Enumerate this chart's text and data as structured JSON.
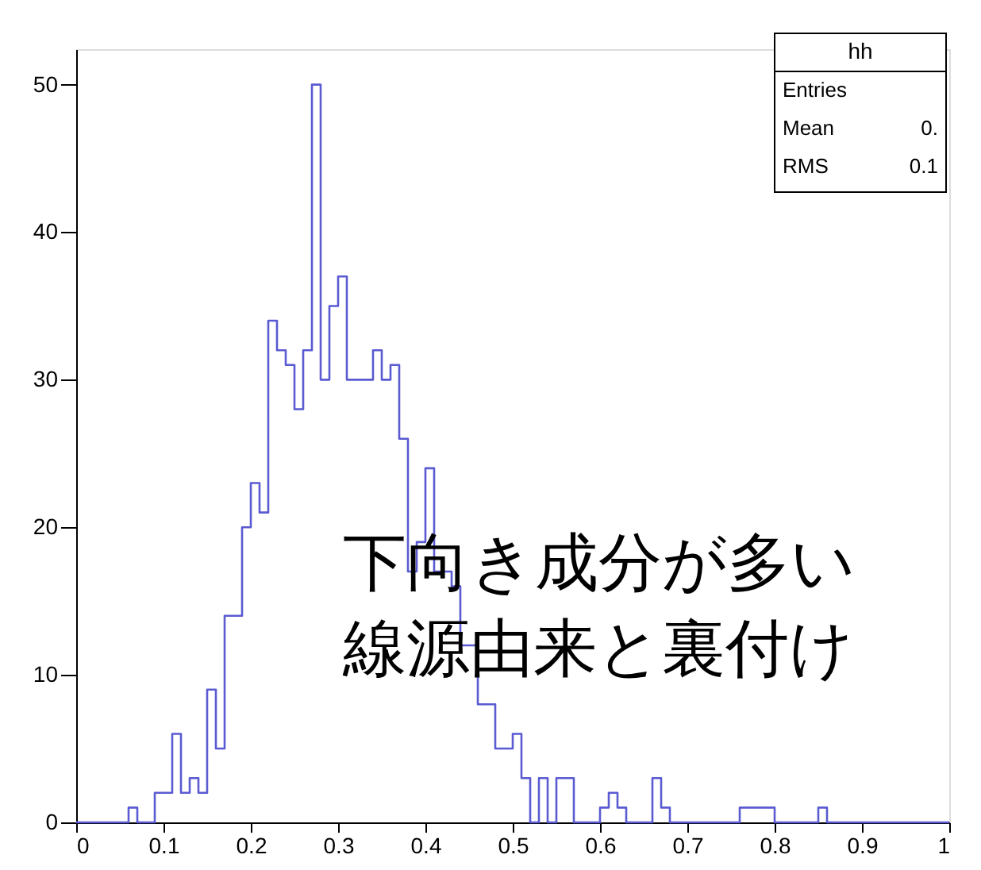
{
  "chart_data": {
    "type": "histogram",
    "bins": [
      0,
      0.01,
      0.02,
      0.03,
      0.04,
      0.05,
      0.06,
      0.07,
      0.08,
      0.09,
      0.1,
      0.11,
      0.12,
      0.13,
      0.14,
      0.15,
      0.16,
      0.17,
      0.18,
      0.19,
      0.2,
      0.21,
      0.22,
      0.23,
      0.24,
      0.25,
      0.26,
      0.27,
      0.28,
      0.29,
      0.3,
      0.31,
      0.32,
      0.33,
      0.34,
      0.35,
      0.36,
      0.37,
      0.38,
      0.39,
      0.4,
      0.41,
      0.42,
      0.43,
      0.44,
      0.45,
      0.46,
      0.47,
      0.48,
      0.49,
      0.5,
      0.51,
      0.52,
      0.53,
      0.54,
      0.55,
      0.56,
      0.57,
      0.58,
      0.59,
      0.6,
      0.61,
      0.62,
      0.63,
      0.64,
      0.65,
      0.66,
      0.67,
      0.68,
      0.69,
      0.7,
      0.71,
      0.72,
      0.73,
      0.74,
      0.75,
      0.76,
      0.77,
      0.78,
      0.79,
      0.8,
      0.81,
      0.82,
      0.83,
      0.84,
      0.85,
      0.86,
      0.87,
      0.88,
      0.89,
      0.9,
      0.91,
      0.92,
      0.93,
      0.94,
      0.95,
      0.96,
      0.97,
      0.98,
      0.99,
      1
    ],
    "values": [
      0,
      0,
      0,
      0,
      0,
      0,
      1,
      0,
      0,
      2,
      2,
      6,
      2,
      3,
      2,
      9,
      5,
      14,
      14,
      20,
      23,
      21,
      34,
      32,
      31,
      28,
      32,
      50,
      30,
      35,
      37,
      30,
      30,
      30,
      32,
      30,
      31,
      26,
      17,
      19,
      24,
      17,
      17,
      16,
      12,
      12,
      8,
      8,
      5,
      5,
      6,
      3,
      0,
      3,
      0,
      3,
      3,
      0,
      0,
      0,
      1,
      2,
      1,
      0,
      0,
      0,
      3,
      1,
      0,
      0,
      0,
      0,
      0,
      0,
      0,
      0,
      1,
      1,
      1,
      1,
      0,
      0,
      0,
      0,
      0,
      1,
      0,
      0,
      0,
      0,
      0,
      0,
      0,
      0,
      0,
      0,
      0,
      0,
      0,
      0
    ],
    "color": "#5a5ad2",
    "xlim": [
      0,
      1
    ],
    "xticks": [
      0,
      0.1,
      0.2,
      0.3,
      0.4,
      0.5,
      0.6,
      0.7,
      0.8,
      0.9,
      1
    ],
    "ylim": [
      0,
      52.4
    ],
    "yticks": [
      0,
      10,
      20,
      30,
      40,
      50
    ],
    "grid": false,
    "annotations": [
      "下向き成分が多い",
      "線源由来と裏付け",
      "hh",
      "Entries",
      "Mean 0.",
      "RMS 0.1"
    ]
  }
}
